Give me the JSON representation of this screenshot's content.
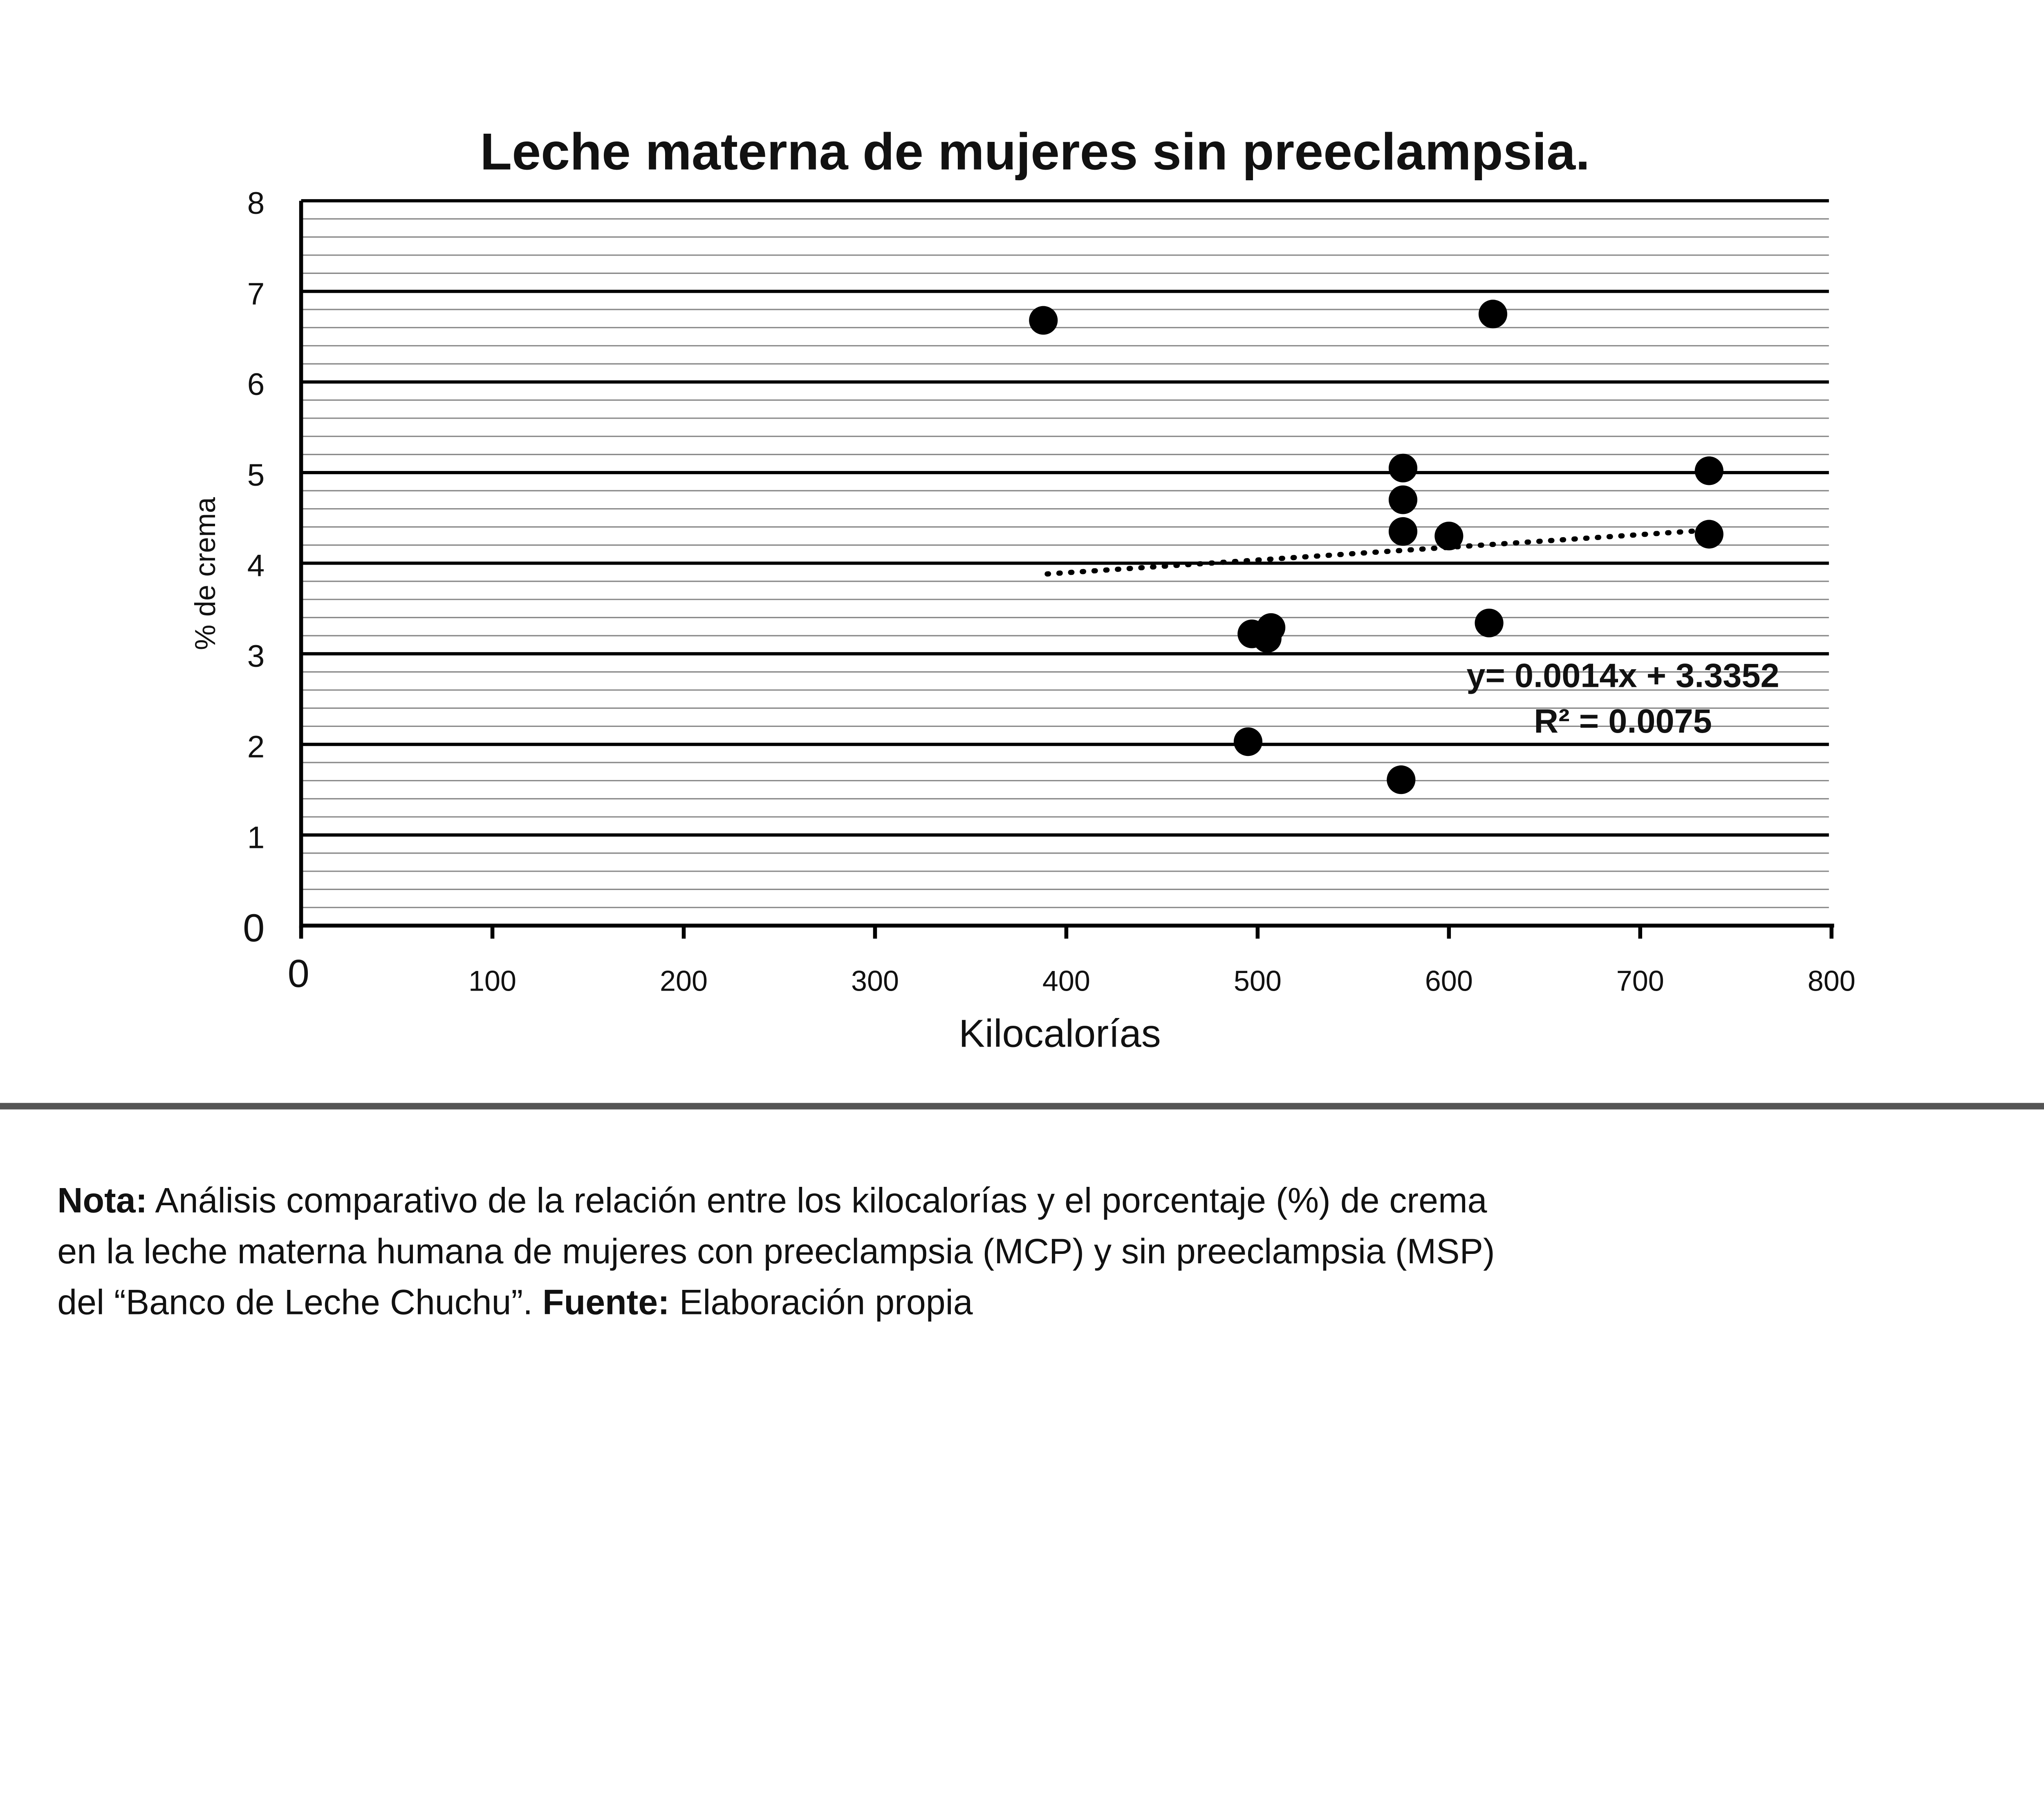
{
  "chart_data": {
    "type": "scatter",
    "title": "Leche materna de mujeres sin preeclampsia.",
    "xlabel": "Kilocalorías",
    "ylabel": "% de crema",
    "xlim": [
      0,
      800
    ],
    "ylim": [
      0,
      8
    ],
    "x_ticks": [
      "0",
      "100",
      "200",
      "300",
      "400",
      "500",
      "600",
      "700",
      "800"
    ],
    "y_ticks": [
      "0",
      "1",
      "2",
      "3",
      "4",
      "5",
      "6",
      "7",
      "8"
    ],
    "grid": "horizontal major and minor",
    "points": [
      {
        "x": 388,
        "y": 6.68
      },
      {
        "x": 623,
        "y": 6.75
      },
      {
        "x": 576,
        "y": 5.05
      },
      {
        "x": 576,
        "y": 4.7
      },
      {
        "x": 576,
        "y": 4.35
      },
      {
        "x": 600,
        "y": 4.3
      },
      {
        "x": 736,
        "y": 5.02
      },
      {
        "x": 736,
        "y": 4.32
      },
      {
        "x": 621,
        "y": 3.34
      },
      {
        "x": 497,
        "y": 3.22
      },
      {
        "x": 507,
        "y": 3.29
      },
      {
        "x": 505,
        "y": 3.17
      },
      {
        "x": 495,
        "y": 2.03
      },
      {
        "x": 575,
        "y": 1.61
      }
    ],
    "trendline": {
      "type": "linear",
      "slope": 0.0014,
      "intercept": 3.3352,
      "x_range": [
        390,
        740
      ],
      "style": "dotted"
    },
    "annotations": [
      "y= 0.0014x + 3.3352",
      "R² = 0.0075"
    ]
  },
  "note": {
    "line1_bold": "Nota:",
    "line1": " Análisis comparativo de la relación entre los kilocalorías y el porcentaje (%) de crema",
    "line2": "en la leche materna humana de mujeres con preeclampsia (MCP) y sin preeclampsia (MSP)",
    "line3_a": "del “Banco de Leche Chuchu”. ",
    "line3_bold": "Fuente:",
    "line3_b": " Elaboración propia"
  }
}
